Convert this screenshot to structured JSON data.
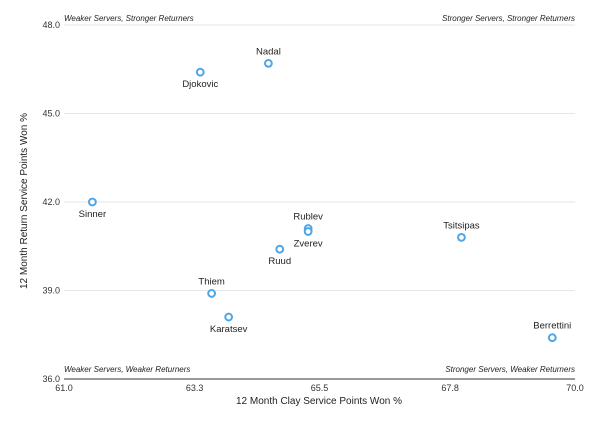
{
  "chart_data": {
    "type": "scatter",
    "xlabel": "12 Month Clay Service Points Won %",
    "ylabel": "12 Month Return Service Points Won %",
    "xlim": [
      61.0,
      70.0
    ],
    "ylim": [
      36.0,
      48.0
    ],
    "x_ticks": [
      "61.0",
      "63.3",
      "65.5",
      "67.8",
      "70.0"
    ],
    "y_ticks": [
      "36.0",
      "39.0",
      "42.0",
      "45.0",
      "48.0"
    ],
    "grid": "horizontal",
    "marker_color": "#4da6e8",
    "quadrant_labels": {
      "top_left": "Weaker Servers, Stronger Returners",
      "top_right": "Stronger Servers, Stronger Returners",
      "bottom_left": "Weaker Servers, Weaker Returners",
      "bottom_right": "Stronger Servers, Weaker Returners"
    },
    "points": [
      {
        "label": "Nadal",
        "x": 64.6,
        "y": 46.7,
        "label_pos": "above"
      },
      {
        "label": "Djokovic",
        "x": 63.4,
        "y": 46.4,
        "label_pos": "below"
      },
      {
        "label": "Sinner",
        "x": 61.5,
        "y": 42.0,
        "label_pos": "below"
      },
      {
        "label": "Rublev",
        "x": 65.3,
        "y": 41.1,
        "label_pos": "above"
      },
      {
        "label": "Zverev",
        "x": 65.3,
        "y": 41.0,
        "label_pos": "below"
      },
      {
        "label": "Ruud",
        "x": 64.8,
        "y": 40.4,
        "label_pos": "below"
      },
      {
        "label": "Tsitsipas",
        "x": 68.0,
        "y": 40.8,
        "label_pos": "above"
      },
      {
        "label": "Thiem",
        "x": 63.6,
        "y": 38.9,
        "label_pos": "above"
      },
      {
        "label": "Karatsev",
        "x": 63.9,
        "y": 38.1,
        "label_pos": "below"
      },
      {
        "label": "Berrettini",
        "x": 69.6,
        "y": 37.4,
        "label_pos": "above"
      }
    ]
  }
}
